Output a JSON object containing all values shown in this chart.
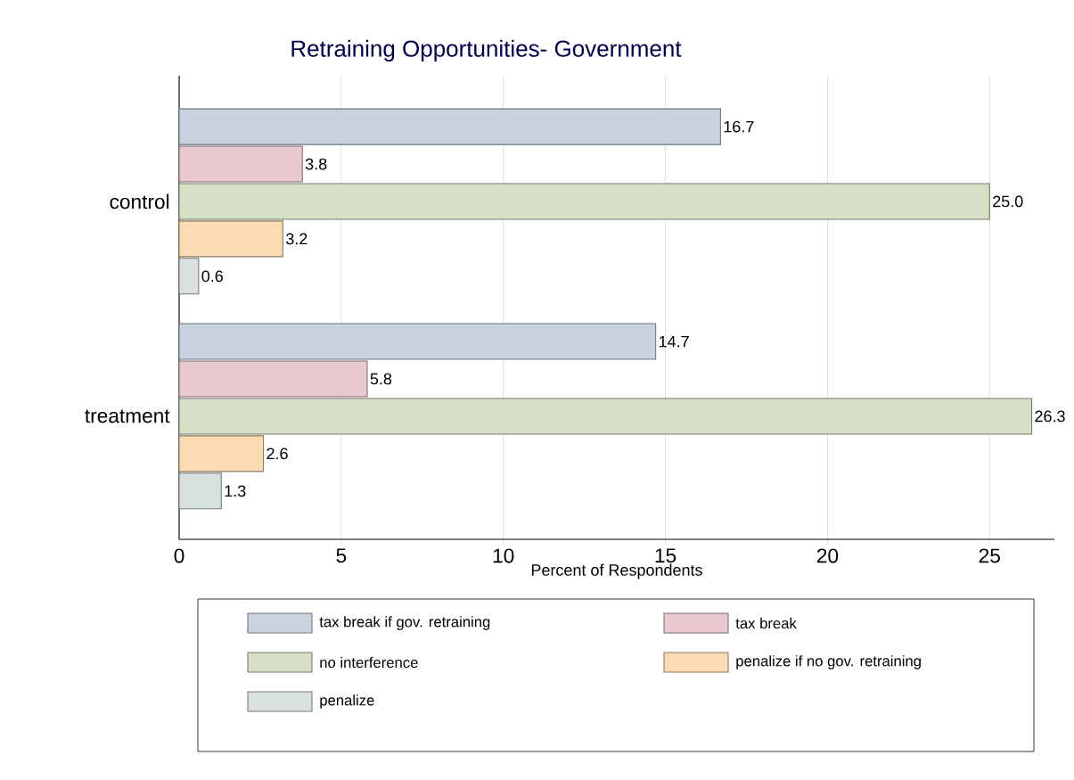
{
  "chart_data": {
    "type": "bar",
    "orientation": "horizontal",
    "title": "Retraining Opportunities- Government",
    "xlabel": "Percent of Respondents",
    "categories": [
      "control",
      "treatment"
    ],
    "series": [
      {
        "name": "tax break if gov. retraining",
        "color": "#c8d3df",
        "values": [
          16.7,
          14.7
        ],
        "value_labels": [
          "16.7",
          "14.7"
        ]
      },
      {
        "name": "tax break",
        "color": "#e8c9cd",
        "values": [
          3.8,
          5.8
        ],
        "value_labels": [
          "3.8",
          "5.8"
        ]
      },
      {
        "name": "no interference",
        "color": "#d6e0c6",
        "values": [
          25.0,
          26.3
        ],
        "value_labels": [
          "25.0",
          "26.3"
        ]
      },
      {
        "name": "penalize if no gov. retraining",
        "color": "#fbdcb2",
        "values": [
          3.2,
          2.6
        ],
        "value_labels": [
          "3.2",
          "2.6"
        ]
      },
      {
        "name": "penalize",
        "color": "#d8e1df",
        "values": [
          0.6,
          1.3
        ],
        "value_labels": [
          "0.6",
          "1.3"
        ]
      }
    ],
    "xlim": [
      0,
      27
    ],
    "xticks": [
      0,
      5,
      10,
      15,
      20,
      25
    ],
    "grid": "x",
    "legend": "bottom"
  }
}
